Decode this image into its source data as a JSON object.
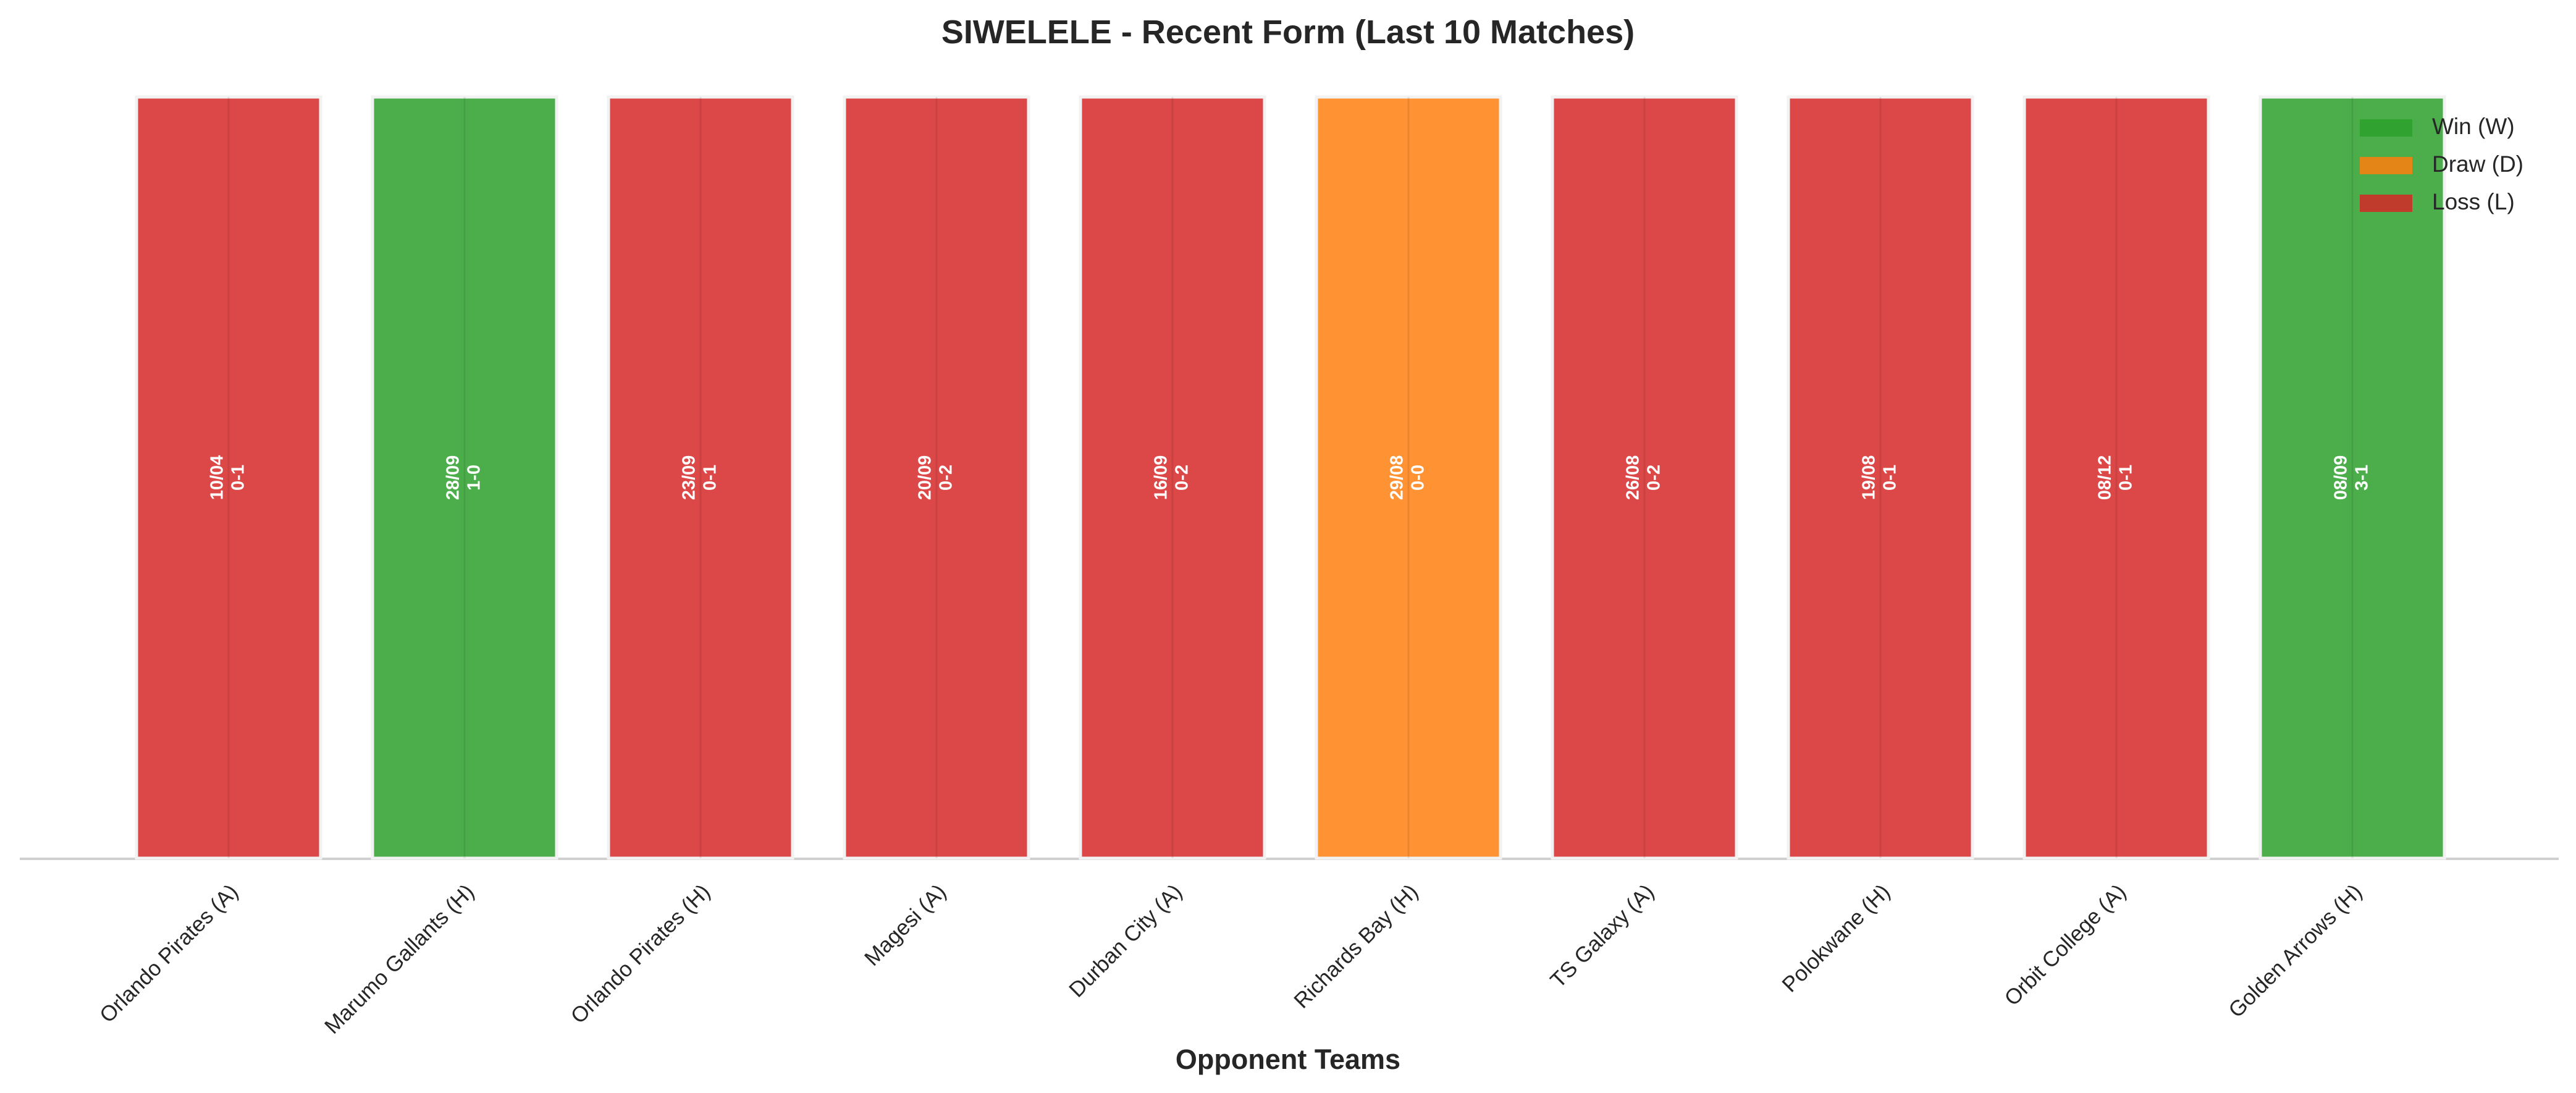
{
  "chart_data": {
    "type": "bar",
    "title": "SIWELELE - Recent Form (Last 10 Matches)",
    "xlabel": "Opponent Teams",
    "categories": [
      "Orlando Pirates (A)",
      "Marumo Gallants (H)",
      "Orlando Pirates (H)",
      "Magesi (A)",
      "Durban City (A)",
      "Richards Bay (H)",
      "TS Galaxy (A)",
      "Polokwane (H)",
      "Orbit College (A)",
      "Golden Arrows (H)"
    ],
    "values": [
      1,
      1,
      1,
      1,
      1,
      1,
      1,
      1,
      1,
      1
    ],
    "dates": [
      "10/04",
      "28/09",
      "23/09",
      "20/09",
      "16/09",
      "29/08",
      "26/08",
      "19/08",
      "08/12",
      "08/09"
    ],
    "scores": [
      "0-1",
      "1-0",
      "0-1",
      "0-2",
      "0-2",
      "0-0",
      "0-2",
      "0-1",
      "0-1",
      "3-1"
    ],
    "colors": [
      "#d62728",
      "#2ca02c",
      "#d62728",
      "#d62728",
      "#d62728",
      "#ff7f0e",
      "#d62728",
      "#d62728",
      "#d62728",
      "#2ca02c"
    ],
    "alpha": 0.85,
    "ylim": [
      0,
      1
    ],
    "grid": true,
    "legend_position": "upper right",
    "legend": [
      {
        "name": "Win (W)",
        "color": "#2ca02c"
      },
      {
        "name": "Draw (D)",
        "color": "#ff7f0e"
      },
      {
        "name": "Loss (L)",
        "color": "#d62728"
      }
    ]
  }
}
